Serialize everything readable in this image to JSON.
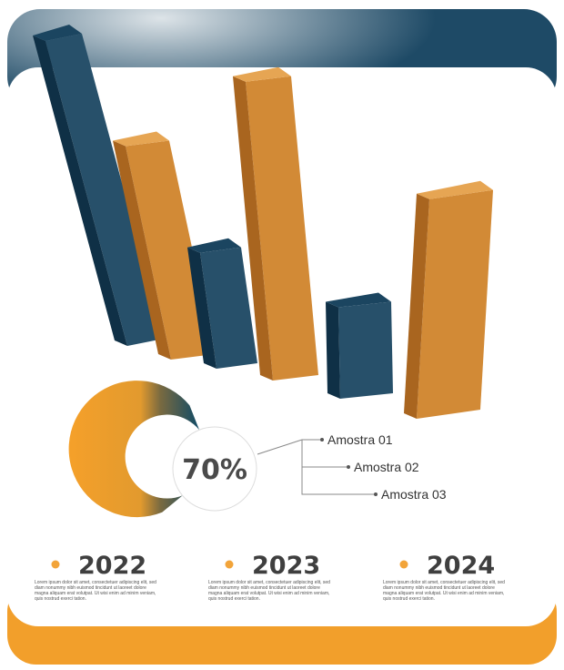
{
  "colors": {
    "navy": "#1e4a66",
    "orange": "#f2a43a",
    "text": "#3f3f3f"
  },
  "chart_data": {
    "type": "bar",
    "bars": [
      {
        "value": 100,
        "color": "navy"
      },
      {
        "value": 70,
        "color": "orange"
      },
      {
        "value": 38,
        "color": "navy"
      },
      {
        "value": 98,
        "color": "orange"
      },
      {
        "value": 30,
        "color": "navy"
      },
      {
        "value": 72,
        "color": "orange"
      }
    ],
    "donut": {
      "value": 70,
      "label": "70%"
    },
    "legend": [
      "Amostra 01",
      "Amostra 02",
      "Amostra 03"
    ]
  },
  "years": [
    {
      "label": "2022",
      "text": [
        "Lorem ipsum dolor sit amet, consectetuer adipiscing elit, sed",
        "diam nonummy nibh euismod tincidunt ut laoreet dolore",
        "magna aliquam erat volutpat. Ut wisi enim ad minim veniam,",
        "quis nostrud exerci tation."
      ]
    },
    {
      "label": "2023",
      "text": [
        "Lorem ipsum dolor sit amet, consectetuer adipiscing elit, sed",
        "diam nonummy nibh euismod tincidunt ut laoreet dolore",
        "magna aliquam erat volutpat. Ut wisi enim ad minim veniam,",
        "quis nostrud exerci tation."
      ]
    },
    {
      "label": "2024",
      "text": [
        "Lorem ipsum dolor sit amet, consectetuer adipiscing elit, sed",
        "diam nonummy nibh euismod tincidunt ut laoreet dolore",
        "magna aliquam erat volutpat. Ut wisi enim ad minim veniam,",
        "quis nostrud exerci tation."
      ]
    }
  ]
}
